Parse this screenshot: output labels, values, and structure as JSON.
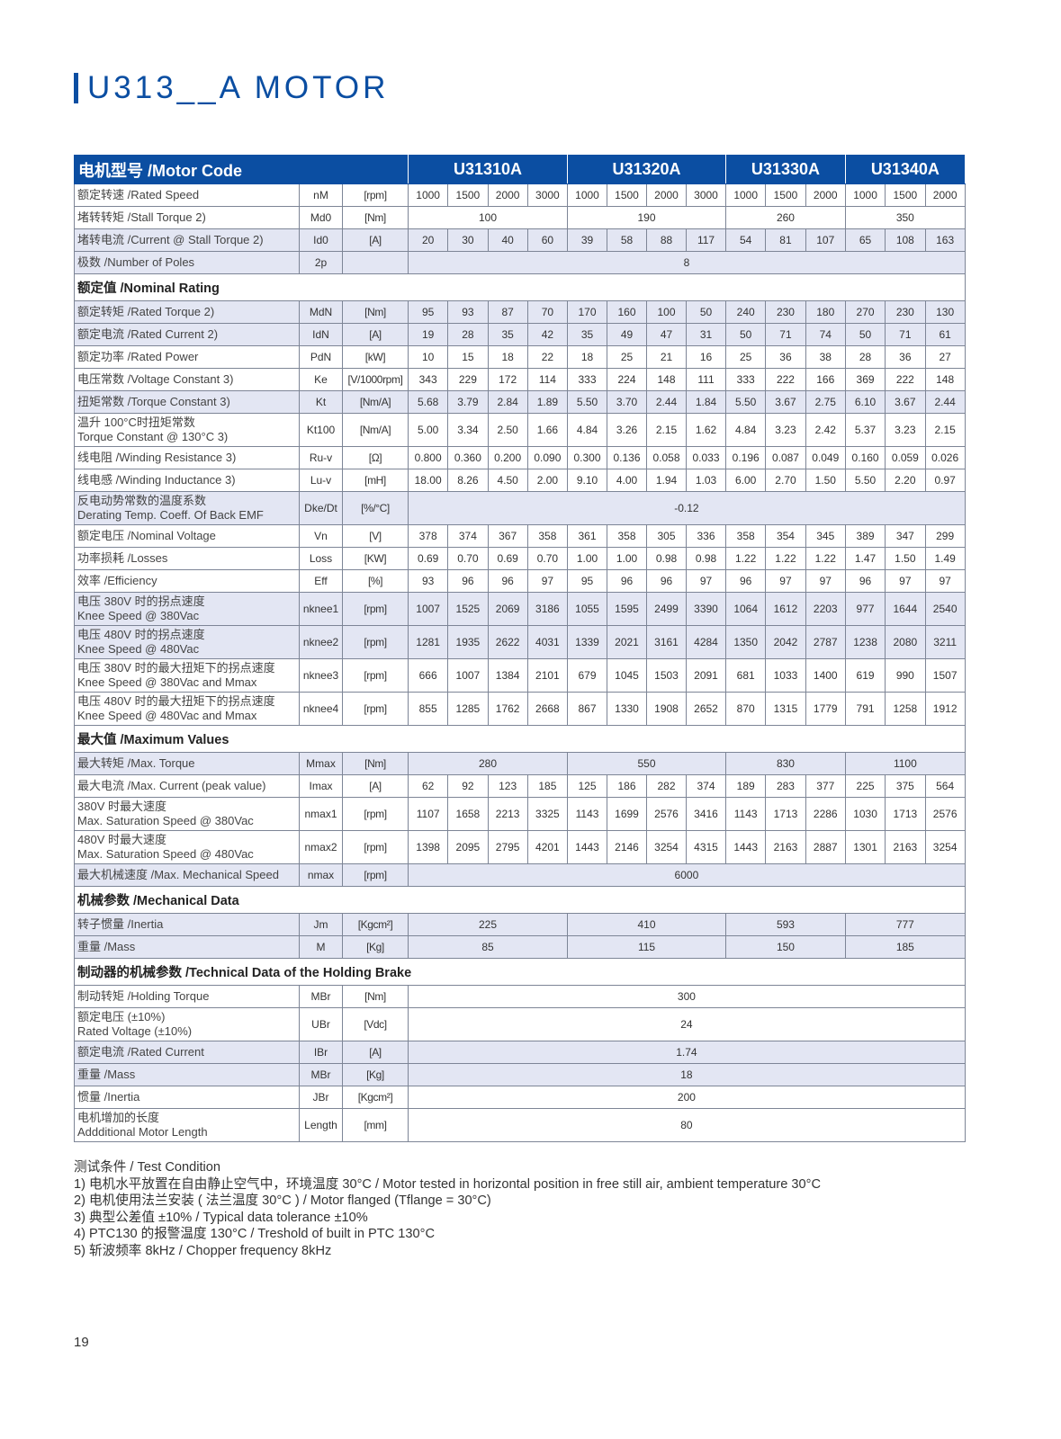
{
  "title": "U313__A MOTOR",
  "colors": {
    "header_blue": "#0b4ea2",
    "row_shade": "#e3e6f3"
  },
  "table": {
    "header_label": "电机型号 /Motor Code",
    "models": [
      "U31310A",
      "U31320A",
      "U31330A",
      "U31340A"
    ],
    "rows": [
      {
        "type": "row",
        "label": [
          "额定转速 /Rated Speed"
        ],
        "sym": "nM",
        "unit": "[rpm]",
        "values": [
          "1000",
          "1500",
          "2000",
          "3000",
          "1000",
          "1500",
          "2000",
          "3000",
          "1000",
          "1500",
          "2000",
          "1000",
          "1500",
          "2000"
        ]
      },
      {
        "type": "row",
        "label": [
          "堵转转矩 /Stall Torque 2)"
        ],
        "sym": "Md0",
        "unit": "[Nm]",
        "groups": [
          "100",
          "190",
          "260",
          "350"
        ]
      },
      {
        "type": "row",
        "shade": true,
        "label": [
          "堵转电流 /Current @ Stall Torque 2)"
        ],
        "sym": "Id0",
        "unit": "[A]",
        "values": [
          "20",
          "30",
          "40",
          "60",
          "39",
          "58",
          "88",
          "117",
          "54",
          "81",
          "107",
          "65",
          "108",
          "163"
        ]
      },
      {
        "type": "row",
        "shade": true,
        "label": [
          "极数 /Number of Poles"
        ],
        "sym": "2p",
        "unit": "",
        "all": "8"
      },
      {
        "type": "section",
        "label": "额定值 /Nominal Rating"
      },
      {
        "type": "row",
        "shade": true,
        "label": [
          "额定转矩 /Rated Torque 2)"
        ],
        "sym": "MdN",
        "unit": "[Nm]",
        "values": [
          "95",
          "93",
          "87",
          "70",
          "170",
          "160",
          "100",
          "50",
          "240",
          "230",
          "180",
          "270",
          "230",
          "130"
        ]
      },
      {
        "type": "row",
        "shade": true,
        "label": [
          "额定电流 /Rated Current 2)"
        ],
        "sym": "IdN",
        "unit": "[A]",
        "values": [
          "19",
          "28",
          "35",
          "42",
          "35",
          "49",
          "47",
          "31",
          "50",
          "71",
          "74",
          "50",
          "71",
          "61"
        ]
      },
      {
        "type": "row",
        "label": [
          "额定功率 /Rated Power"
        ],
        "sym": "PdN",
        "unit": "[kW]",
        "values": [
          "10",
          "15",
          "18",
          "22",
          "18",
          "25",
          "21",
          "16",
          "25",
          "36",
          "38",
          "28",
          "36",
          "27"
        ]
      },
      {
        "type": "row",
        "label": [
          "电压常数 /Voltage Constant 3)"
        ],
        "sym": "Ke",
        "unit": "[V/1000rpm]",
        "values": [
          "343",
          "229",
          "172",
          "114",
          "333",
          "224",
          "148",
          "111",
          "333",
          "222",
          "166",
          "369",
          "222",
          "148"
        ]
      },
      {
        "type": "row",
        "shade": true,
        "label": [
          "扭矩常数 /Torque Constant 3)"
        ],
        "sym": "Kt",
        "unit": "[Nm/A]",
        "values": [
          "5.68",
          "3.79",
          "2.84",
          "1.89",
          "5.50",
          "3.70",
          "2.44",
          "1.84",
          "5.50",
          "3.67",
          "2.75",
          "6.10",
          "3.67",
          "2.44"
        ]
      },
      {
        "type": "row",
        "label": [
          "温升 100°C时扭矩常数",
          "Torque Constant @ 130°C 3)"
        ],
        "sym": "Kt100",
        "unit": "[Nm/A]",
        "values": [
          "5.00",
          "3.34",
          "2.50",
          "1.66",
          "4.84",
          "3.26",
          "2.15",
          "1.62",
          "4.84",
          "3.23",
          "2.42",
          "5.37",
          "3.23",
          "2.15"
        ]
      },
      {
        "type": "row",
        "label": [
          "线电阻 /Winding Resistance 3)"
        ],
        "sym": "Ru-v",
        "unit": "[Ω]",
        "values": [
          "0.800",
          "0.360",
          "0.200",
          "0.090",
          "0.300",
          "0.136",
          "0.058",
          "0.033",
          "0.196",
          "0.087",
          "0.049",
          "0.160",
          "0.059",
          "0.026"
        ]
      },
      {
        "type": "row",
        "label": [
          "线电感 /Winding Inductance 3)"
        ],
        "sym": "Lu-v",
        "unit": "[mH]",
        "values": [
          "18.00",
          "8.26",
          "4.50",
          "2.00",
          "9.10",
          "4.00",
          "1.94",
          "1.03",
          "6.00",
          "2.70",
          "1.50",
          "5.50",
          "2.20",
          "0.97"
        ]
      },
      {
        "type": "row",
        "shade": true,
        "label": [
          "反电动势常数的温度系数",
          "Derating Temp. Coeff. Of Back EMF"
        ],
        "sym": "Dke/Dt",
        "unit": "[%/°C]",
        "all": "-0.12"
      },
      {
        "type": "row",
        "label": [
          "额定电压 /Nominal Voltage"
        ],
        "sym": "Vn",
        "unit": "[V]",
        "values": [
          "378",
          "374",
          "367",
          "358",
          "361",
          "358",
          "305",
          "336",
          "358",
          "354",
          "345",
          "389",
          "347",
          "299"
        ]
      },
      {
        "type": "row",
        "label": [
          "功率损耗 /Losses"
        ],
        "sym": "Loss",
        "unit": "[KW]",
        "values": [
          "0.69",
          "0.70",
          "0.69",
          "0.70",
          "1.00",
          "1.00",
          "0.98",
          "0.98",
          "1.22",
          "1.22",
          "1.22",
          "1.47",
          "1.50",
          "1.49"
        ]
      },
      {
        "type": "row",
        "label": [
          "效率 /Efficiency"
        ],
        "sym": "Eff",
        "unit": "[%]",
        "values": [
          "93",
          "96",
          "96",
          "97",
          "95",
          "96",
          "96",
          "97",
          "96",
          "97",
          "97",
          "96",
          "97",
          "97"
        ]
      },
      {
        "type": "row",
        "shade": true,
        "label": [
          "电压 380V 时的拐点速度",
          "Knee Speed @ 380Vac"
        ],
        "sym": "nknee1",
        "unit": "[rpm]",
        "values": [
          "1007",
          "1525",
          "2069",
          "3186",
          "1055",
          "1595",
          "2499",
          "3390",
          "1064",
          "1612",
          "2203",
          "977",
          "1644",
          "2540"
        ]
      },
      {
        "type": "row",
        "shade": true,
        "label": [
          "电压 480V 时的拐点速度",
          "Knee Speed @ 480Vac"
        ],
        "sym": "nknee2",
        "unit": "[rpm]",
        "values": [
          "1281",
          "1935",
          "2622",
          "4031",
          "1339",
          "2021",
          "3161",
          "4284",
          "1350",
          "2042",
          "2787",
          "1238",
          "2080",
          "3211"
        ]
      },
      {
        "type": "row",
        "label": [
          "电压 380V 时的最大扭矩下的拐点速度",
          "Knee Speed @ 380Vac and Mmax"
        ],
        "sym": "nknee3",
        "unit": "[rpm]",
        "values": [
          "666",
          "1007",
          "1384",
          "2101",
          "679",
          "1045",
          "1503",
          "2091",
          "681",
          "1033",
          "1400",
          "619",
          "990",
          "1507"
        ]
      },
      {
        "type": "row",
        "label": [
          "电压 480V 时的最大扭矩下的拐点速度",
          "Knee Speed @ 480Vac and Mmax"
        ],
        "sym": "nknee4",
        "unit": "[rpm]",
        "values": [
          "855",
          "1285",
          "1762",
          "2668",
          "867",
          "1330",
          "1908",
          "2652",
          "870",
          "1315",
          "1779",
          "791",
          "1258",
          "1912"
        ]
      },
      {
        "type": "section",
        "label": "最大值 /Maximum Values"
      },
      {
        "type": "row",
        "shade": true,
        "label": [
          "最大转矩 /Max. Torque"
        ],
        "sym": "Mmax",
        "unit": "[Nm]",
        "groups": [
          "280",
          "550",
          "830",
          "1100"
        ]
      },
      {
        "type": "row",
        "label": [
          "最大电流 /Max. Current (peak value)"
        ],
        "sym": "Imax",
        "unit": "[A]",
        "values": [
          "62",
          "92",
          "123",
          "185",
          "125",
          "186",
          "282",
          "374",
          "189",
          "283",
          "377",
          "225",
          "375",
          "564"
        ]
      },
      {
        "type": "row",
        "label": [
          "380V 时最大速度",
          "Max. Saturation Speed @ 380Vac"
        ],
        "sym": "nmax1",
        "unit": "[rpm]",
        "values": [
          "1107",
          "1658",
          "2213",
          "3325",
          "1143",
          "1699",
          "2576",
          "3416",
          "1143",
          "1713",
          "2286",
          "1030",
          "1713",
          "2576"
        ]
      },
      {
        "type": "row",
        "label": [
          "480V 时最大速度",
          "Max. Saturation Speed @ 480Vac"
        ],
        "sym": "nmax2",
        "unit": "[rpm]",
        "values": [
          "1398",
          "2095",
          "2795",
          "4201",
          "1443",
          "2146",
          "3254",
          "4315",
          "1443",
          "2163",
          "2887",
          "1301",
          "2163",
          "3254"
        ]
      },
      {
        "type": "row",
        "shade": true,
        "label": [
          "最大机械速度 /Max. Mechanical Speed"
        ],
        "sym": "nmax",
        "unit": "[rpm]",
        "all": "6000"
      },
      {
        "type": "section",
        "label": "机械参数 /Mechanical Data"
      },
      {
        "type": "row",
        "shade": true,
        "label": [
          "转子惯量 /Inertia"
        ],
        "sym": "Jm",
        "unit": "[Kgcm²]",
        "groups": [
          "225",
          "410",
          "593",
          "777"
        ]
      },
      {
        "type": "row",
        "shade": true,
        "label": [
          "重量 /Mass"
        ],
        "sym": "M",
        "unit": "[Kg]",
        "groups": [
          "85",
          "115",
          "150",
          "185"
        ]
      },
      {
        "type": "section",
        "label": "制动器的机械参数 /Technical Data of the Holding Brake"
      },
      {
        "type": "row",
        "label": [
          "制动转矩 /Holding Torque"
        ],
        "sym": "MBr",
        "unit": "[Nm]",
        "all": "300"
      },
      {
        "type": "row",
        "label": [
          "额定电压 (±10%)",
          "Rated Voltage (±10%)"
        ],
        "sym": "UBr",
        "unit": "[Vdc]",
        "all": "24"
      },
      {
        "type": "row",
        "shade": true,
        "label": [
          "额定电流 /Rated Current"
        ],
        "sym": "IBr",
        "unit": "[A]",
        "all": "1.74"
      },
      {
        "type": "row",
        "shade": true,
        "label": [
          "重量 /Mass"
        ],
        "sym": "MBr",
        "unit": "[Kg]",
        "all": "18"
      },
      {
        "type": "row",
        "label": [
          "惯量 /Inertia"
        ],
        "sym": "JBr",
        "unit": "[Kgcm²]",
        "all": "200"
      },
      {
        "type": "row",
        "label": [
          "电机增加的长度",
          "Addditional Motor Length"
        ],
        "sym": "Length",
        "unit": "[mm]",
        "all": "80"
      }
    ]
  },
  "notes": {
    "heading": "测试条件 / Test Condition",
    "items": [
      "1) 电机水平放置在自由静止空气中，环境温度 30°C / Motor tested in horizontal position in free still air, ambient temperature 30°C",
      "2) 电机使用法兰安装 ( 法兰温度 30°C ) / Motor flanged (Tflange = 30°C)",
      "3) 典型公差值 ±10% / Typical data tolerance ±10%",
      "4) PTC130 的报警温度 130°C / Treshold of built in PTC 130°C",
      "5) 斩波频率 8kHz / Chopper frequency 8kHz"
    ]
  },
  "page_number": "19"
}
